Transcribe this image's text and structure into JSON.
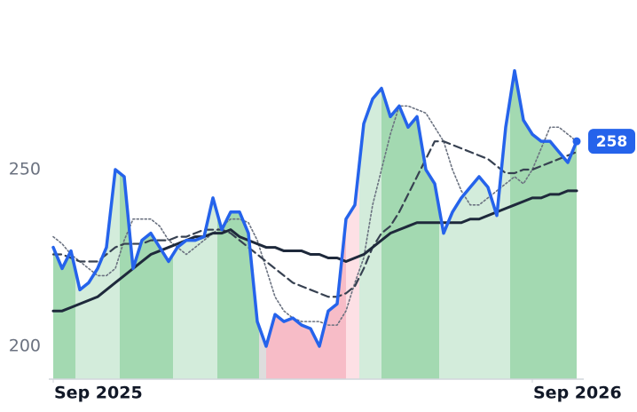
{
  "chart_data": {
    "type": "line",
    "x": [
      0,
      1,
      2,
      3,
      4,
      5,
      6,
      7,
      8,
      9,
      10,
      11,
      12,
      13,
      14,
      15,
      16,
      17,
      18,
      19,
      20,
      21,
      22,
      23,
      24,
      25,
      26,
      27,
      28,
      29,
      30,
      31,
      32,
      33,
      34,
      35,
      36,
      37,
      38,
      39,
      40,
      41,
      42,
      43,
      44,
      45,
      46,
      47,
      48,
      49,
      50,
      51,
      52,
      53,
      54,
      55,
      56,
      57,
      58,
      59
    ],
    "xlim": [
      0,
      59.2
    ],
    "xticks": [
      {
        "value": 0,
        "label": "Sep 2025"
      },
      {
        "value": 54,
        "label": "Sep 2026"
      }
    ],
    "ylim": [
      190.7,
      298
    ],
    "yticks": [
      200,
      250
    ],
    "series": [
      {
        "color": "#2563eb",
        "values": [
          228,
          222,
          227,
          216,
          218,
          222,
          228,
          250,
          248,
          222,
          230,
          232,
          228,
          224,
          228,
          230,
          230,
          231,
          242,
          233,
          238,
          238,
          232,
          207,
          200,
          209,
          207,
          208,
          206,
          205,
          200,
          210,
          212,
          236,
          240,
          263,
          270,
          273,
          265,
          268,
          262,
          265,
          250,
          246,
          232,
          238,
          242,
          245,
          248,
          245,
          237,
          262,
          278,
          264,
          260,
          258,
          258,
          255,
          252,
          258
        ]
      },
      {
        "color": "#6b7280",
        "style": "dotted",
        "values": [
          231,
          229,
          226,
          224,
          222,
          220,
          220,
          222,
          230,
          236,
          236,
          236,
          234,
          230,
          228,
          226,
          228,
          230,
          232,
          234,
          236,
          236,
          235,
          230,
          222,
          214,
          210,
          208,
          207,
          207,
          207,
          206,
          206,
          210,
          218,
          225,
          240,
          250,
          260,
          268,
          268,
          267,
          266,
          262,
          258,
          250,
          244,
          240,
          240,
          242,
          244,
          246,
          248,
          246,
          250,
          256,
          262,
          262,
          260,
          258
        ]
      },
      {
        "color": "#374151",
        "style": "dashed",
        "values": [
          226,
          226,
          225,
          224,
          224,
          224,
          226,
          228,
          229,
          229,
          229,
          230,
          230,
          230,
          231,
          231,
          232,
          233,
          233,
          233,
          232,
          230,
          228,
          226,
          224,
          222,
          220,
          218,
          217,
          216,
          215,
          214,
          214,
          215,
          217,
          222,
          228,
          232,
          234,
          238,
          243,
          248,
          253,
          258,
          258,
          257,
          256,
          255,
          254,
          253,
          251,
          249,
          249,
          250,
          250,
          251,
          252,
          253,
          254,
          255
        ]
      },
      {
        "color": "#1e293b",
        "style": "solid",
        "values": [
          210,
          210,
          211,
          212,
          213,
          214,
          216,
          218,
          220,
          222,
          224,
          226,
          227,
          228,
          229,
          230,
          231,
          231,
          232,
          232,
          233,
          231,
          230,
          229,
          228,
          228,
          227,
          227,
          227,
          226,
          226,
          225,
          225,
          224,
          225,
          226,
          228,
          230,
          232,
          233,
          234,
          235,
          235,
          235,
          235,
          235,
          235,
          236,
          236,
          237,
          238,
          239,
          240,
          241,
          242,
          242,
          243,
          243,
          244,
          244
        ]
      }
    ],
    "bands": [
      {
        "start": 0,
        "end": 2.5,
        "color": "#a3d9b1"
      },
      {
        "start": 2.5,
        "end": 7.5,
        "color": "#d3ecdb"
      },
      {
        "start": 7.5,
        "end": 13.5,
        "color": "#a3d9b1"
      },
      {
        "start": 13.5,
        "end": 18.5,
        "color": "#d3ecdb"
      },
      {
        "start": 18.5,
        "end": 23.2,
        "color": "#a3d9b1"
      },
      {
        "start": 23.2,
        "end": 24,
        "color": "#dddddd"
      },
      {
        "start": 24,
        "end": 33,
        "color": "#f7bcc7"
      },
      {
        "start": 33,
        "end": 34.5,
        "color": "#fde0e5"
      },
      {
        "start": 34.5,
        "end": 37,
        "color": "#d3ecdb"
      },
      {
        "start": 37,
        "end": 43.5,
        "color": "#a3d9b1"
      },
      {
        "start": 43.5,
        "end": 51.5,
        "color": "#d3ecdb"
      },
      {
        "start": 51.5,
        "end": 59.2,
        "color": "#a3d9b1"
      }
    ]
  }
}
